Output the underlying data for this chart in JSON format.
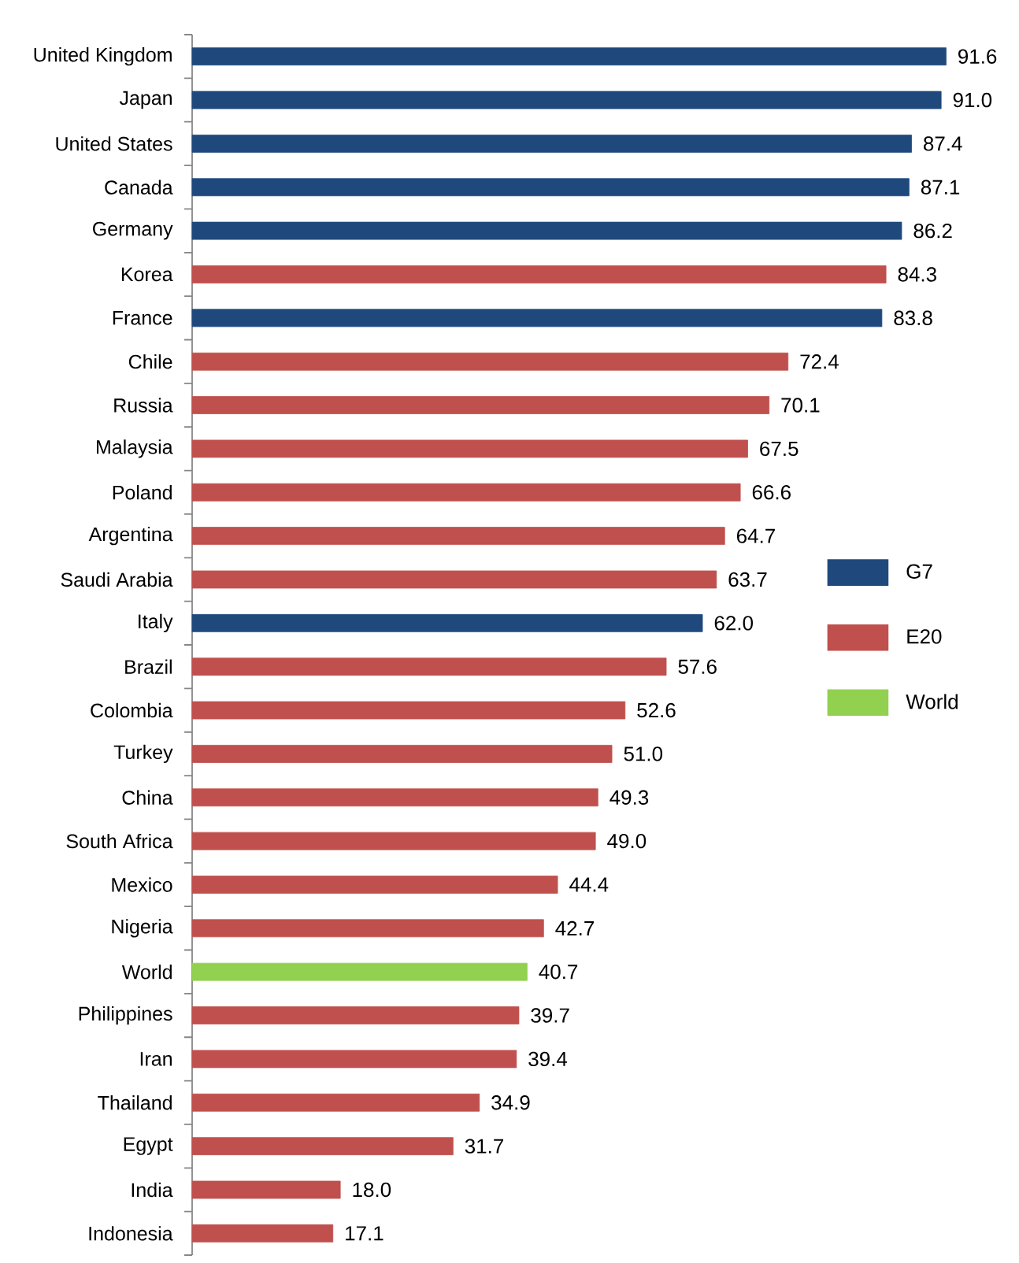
{
  "chart_data": {
    "type": "bar",
    "orientation": "horizontal",
    "categories": [
      "United Kingdom",
      "Japan",
      "United States",
      "Canada",
      "Germany",
      "Korea",
      "France",
      "Chile",
      "Russia",
      "Malaysia",
      "Poland",
      "Argentina",
      "Saudi Arabia",
      "Italy",
      "Brazil",
      "Colombia",
      "Turkey",
      "China",
      "South Africa",
      "Mexico",
      "Nigeria",
      "World",
      "Philippines",
      "Iran",
      "Thailand",
      "Egypt",
      "India",
      "Indonesia"
    ],
    "series": [
      {
        "name": "G7",
        "color": "#1f497d",
        "values": [
          91.6,
          91.0,
          87.4,
          87.1,
          86.2,
          null,
          83.8,
          null,
          null,
          null,
          null,
          null,
          null,
          62.0,
          null,
          null,
          null,
          null,
          null,
          null,
          null,
          null,
          null,
          null,
          null,
          null,
          null,
          null
        ],
        "value_labels": [
          "91.6",
          "91.0",
          "87.4",
          "87.1",
          "86.2",
          null,
          "83.8",
          null,
          null,
          null,
          null,
          null,
          null,
          "62.0",
          null,
          null,
          null,
          null,
          null,
          null,
          null,
          null,
          null,
          null,
          null,
          null,
          null,
          null
        ]
      },
      {
        "name": "E20",
        "color": "#c0504d",
        "values": [
          null,
          null,
          null,
          null,
          null,
          84.3,
          null,
          72.4,
          70.1,
          67.5,
          66.6,
          64.7,
          63.7,
          null,
          57.6,
          52.6,
          51.0,
          49.3,
          49.0,
          44.4,
          42.7,
          null,
          39.7,
          39.4,
          34.9,
          31.7,
          18.0,
          17.1
        ],
        "value_labels": [
          null,
          null,
          null,
          null,
          null,
          "84.3",
          null,
          "72.4",
          "70.1",
          "67.5",
          "66.6",
          "64.7",
          "63.7",
          null,
          "57.6",
          "52.6",
          "51.0",
          "49.3",
          "49.0",
          "44.4",
          "42.7",
          null,
          "39.7",
          "39.4",
          "34.9",
          "31.7",
          "18.0",
          "17.1"
        ]
      },
      {
        "name": "World",
        "color": "#92d050",
        "values": [
          null,
          null,
          null,
          null,
          null,
          null,
          null,
          null,
          null,
          null,
          null,
          null,
          null,
          null,
          null,
          null,
          null,
          null,
          null,
          null,
          null,
          40.7,
          null,
          null,
          null,
          null,
          null,
          null
        ],
        "value_labels": [
          null,
          null,
          null,
          null,
          null,
          null,
          null,
          null,
          null,
          null,
          null,
          null,
          null,
          null,
          null,
          null,
          null,
          null,
          null,
          null,
          null,
          "40.7",
          null,
          null,
          null,
          null,
          null,
          null
        ]
      }
    ],
    "legend": "right",
    "tick_labels": "y"
  }
}
